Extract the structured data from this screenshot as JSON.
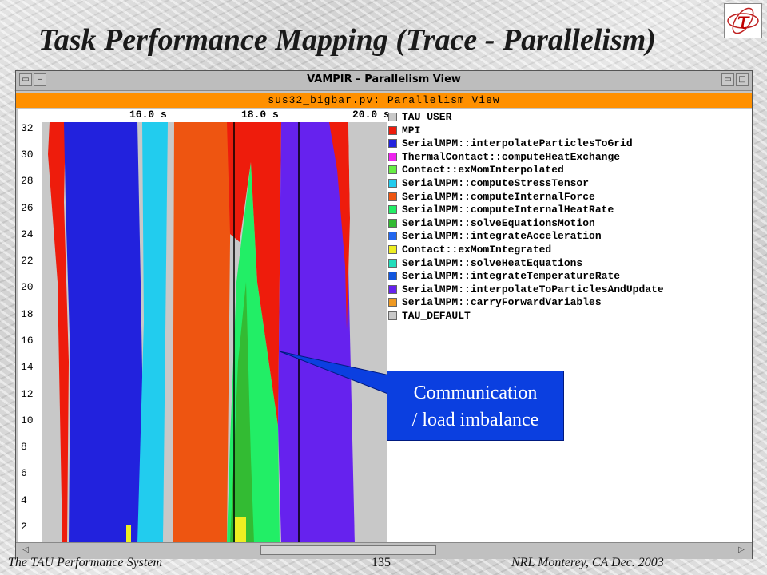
{
  "slide": {
    "title": "Task Performance Mapping (Trace - Parallelism)",
    "logo_glyph": "τ",
    "footer_left": "The TAU Performance System",
    "footer_page": "135",
    "footer_right": "NRL Monterey, CA Dec. 2003"
  },
  "window": {
    "title": "VAMPIR – Parallelism View",
    "header": "sus32_bigbar.pv: Parallelism View",
    "menu_button_glyph": "▭",
    "minimize_glyph": "–",
    "maximize_glyph": "□",
    "scroll_left_glyph": "◁",
    "scroll_right_glyph": "▷"
  },
  "callout": {
    "line1": "Communication",
    "line2": "/ load imbalance",
    "color": "#0b3fe0"
  },
  "chart_data": {
    "type": "area",
    "x_ticks": [
      "16.0 s",
      "18.0 s",
      "20.0 s"
    ],
    "y_ticks": [
      "32",
      "30",
      "28",
      "26",
      "24",
      "22",
      "20",
      "18",
      "16",
      "14",
      "12",
      "10",
      "8",
      "6",
      "4",
      "2"
    ],
    "ylim": [
      0,
      32
    ],
    "legend": [
      {
        "label": "TAU_USER",
        "color": "#c8c8c8"
      },
      {
        "label": "MPI",
        "color": "#ee1c0c"
      },
      {
        "label": "SerialMPM::interpolateParticlesToGrid",
        "color": "#2222dd"
      },
      {
        "label": "ThermalContact::computeHeatExchange",
        "color": "#ee22ee"
      },
      {
        "label": "Contact::exMomInterpolated",
        "color": "#66ee44"
      },
      {
        "label": "SerialMPM::computeStressTensor",
        "color": "#22ccee"
      },
      {
        "label": "SerialMPM::computeInternalForce",
        "color": "#ee5511"
      },
      {
        "label": "SerialMPM::computeInternalHeatRate",
        "color": "#22ee66"
      },
      {
        "label": "SerialMPM::solveEquationsMotion",
        "color": "#33bb33"
      },
      {
        "label": "SerialMPM::integrateAcceleration",
        "color": "#2266ee"
      },
      {
        "label": "Contact::exMomIntegrated",
        "color": "#eeee22"
      },
      {
        "label": "SerialMPM::solveHeatEquations",
        "color": "#22ddbb"
      },
      {
        "label": "SerialMPM::integrateTemperatureRate",
        "color": "#1155dd"
      },
      {
        "label": "SerialMPM::interpolateToParticlesAndUpdate",
        "color": "#6622ee"
      },
      {
        "label": "SerialMPM::carryForwardVariables",
        "color": "#ee9922"
      },
      {
        "label": "TAU_DEFAULT",
        "color": "#c8c8c8"
      }
    ]
  }
}
